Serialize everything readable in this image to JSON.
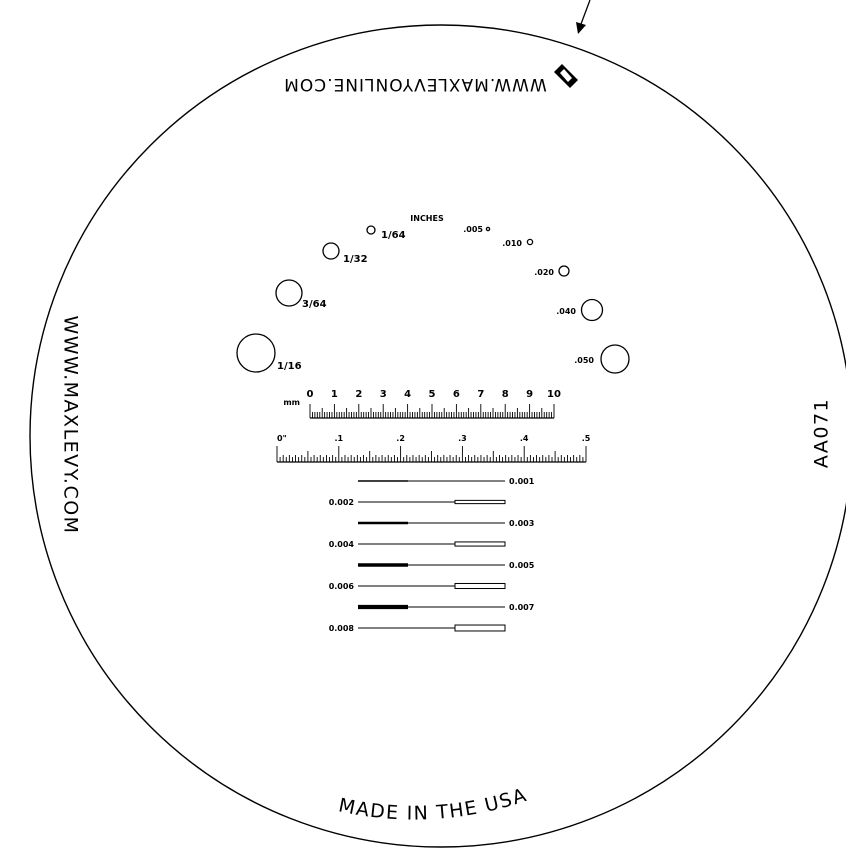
{
  "texts": {
    "top_url": "WWW.MAXLEVYONLINE.COM",
    "left_url": "WWW.MAXLEVY.COM",
    "made_in": "MADE IN THE USA",
    "part_number": "AA071",
    "inches_heading": "INCHES",
    "mm_unit": "mm",
    "inch_zero": "0\""
  },
  "holes": [
    {
      "label": ".005"
    },
    {
      "label": ".010"
    },
    {
      "label": ".020"
    },
    {
      "label": ".040"
    },
    {
      "label": ".050"
    },
    {
      "label": "1/64"
    },
    {
      "label": "1/32"
    },
    {
      "label": "3/64"
    },
    {
      "label": "1/16"
    }
  ],
  "mm_scale": {
    "labels": [
      "0",
      "1",
      "2",
      "3",
      "4",
      "5",
      "6",
      "7",
      "8",
      "9",
      "10"
    ]
  },
  "inch_scale": {
    "labels": [
      "0\"",
      ".1",
      ".2",
      ".3",
      ".4",
      ".5"
    ]
  },
  "line_widths": [
    {
      "label": "0.001"
    },
    {
      "label": "0.002"
    },
    {
      "label": "0.003"
    },
    {
      "label": "0.004"
    },
    {
      "label": "0.005"
    },
    {
      "label": "0.006"
    },
    {
      "label": "0.007"
    },
    {
      "label": "0.008"
    }
  ]
}
